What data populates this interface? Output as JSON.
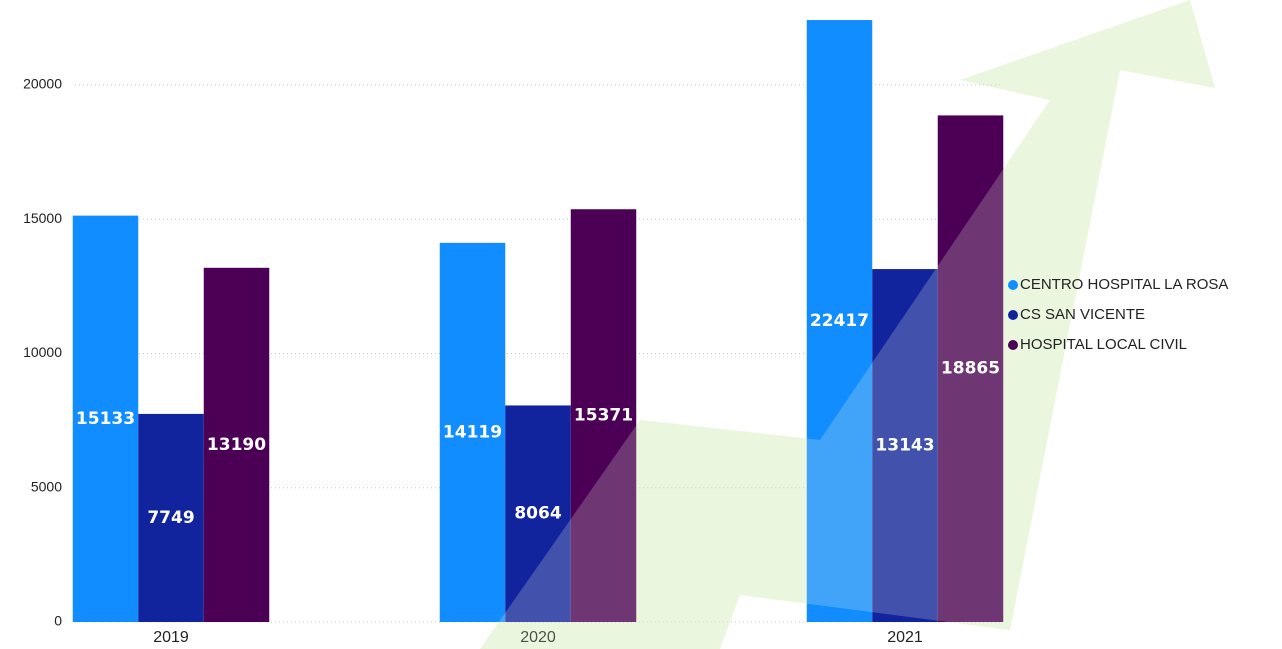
{
  "chart_data": {
    "type": "bar",
    "categories": [
      "2019",
      "2020",
      "2021"
    ],
    "series": [
      {
        "name": "CENTRO HOSPITAL LA ROSA",
        "color": "#118dff",
        "values": [
          15133,
          14119,
          22417
        ]
      },
      {
        "name": "CS SAN VICENTE",
        "color": "#12239e",
        "values": [
          7749,
          8064,
          13143
        ]
      },
      {
        "name": "HOSPITAL LOCAL CIVIL",
        "color": "#4b0055",
        "values": [
          13190,
          15371,
          18865
        ]
      }
    ],
    "ylim": [
      0,
      22500
    ],
    "yticks": [
      0,
      5000,
      10000,
      15000,
      20000
    ],
    "grid": true,
    "legend": "right"
  }
}
